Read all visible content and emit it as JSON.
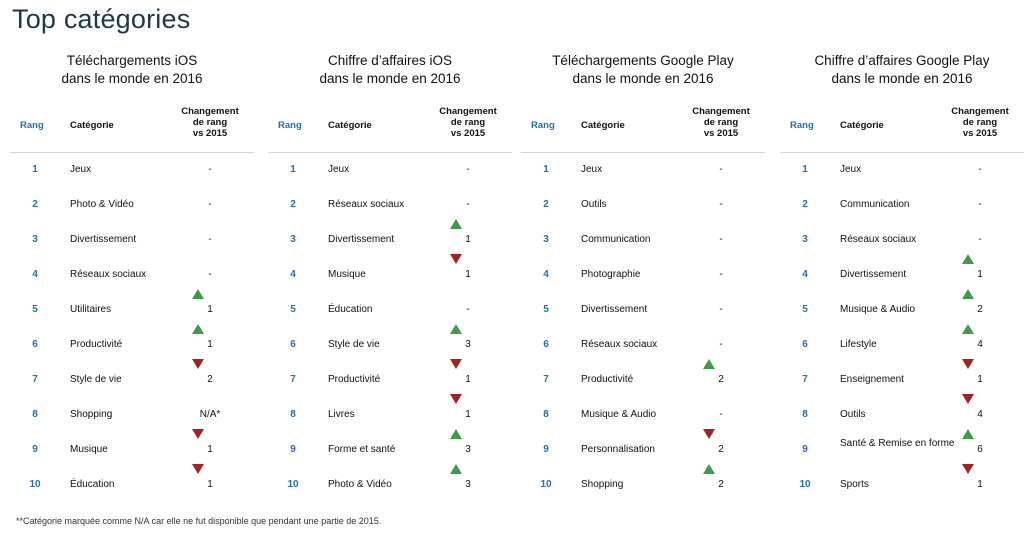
{
  "page_title": "Top catégories",
  "headers": {
    "rank": "Rang",
    "category": "Catégorie",
    "change_l1": "Changement",
    "change_l2": "de rang",
    "change_l3": "vs 2015"
  },
  "panels": [
    {
      "title_l1": "Téléchargements iOS",
      "title_l2": "dans le monde en 2016",
      "rows": [
        {
          "rank": "1",
          "cat": "Jeux",
          "change": "-",
          "trend": "none"
        },
        {
          "rank": "2",
          "cat": "Photo & Vidéo",
          "change": "-",
          "trend": "none"
        },
        {
          "rank": "3",
          "cat": "Divertissement",
          "change": "-",
          "trend": "none"
        },
        {
          "rank": "4",
          "cat": "Réseaux sociaux",
          "change": "-",
          "trend": "none"
        },
        {
          "rank": "5",
          "cat": "Utilitaires",
          "change": "1",
          "trend": "up"
        },
        {
          "rank": "6",
          "cat": "Productivité",
          "change": "1",
          "trend": "up"
        },
        {
          "rank": "7",
          "cat": "Style de vie",
          "change": "2",
          "trend": "down"
        },
        {
          "rank": "8",
          "cat": "Shopping",
          "change": "N/A*",
          "trend": "none"
        },
        {
          "rank": "9",
          "cat": "Musique",
          "change": "1",
          "trend": "down"
        },
        {
          "rank": "10",
          "cat": "Éducation",
          "change": "1",
          "trend": "down"
        }
      ]
    },
    {
      "title_l1": "Chiffre d’affaires iOS",
      "title_l2": "dans le monde en 2016",
      "rows": [
        {
          "rank": "1",
          "cat": "Jeux",
          "change": "-",
          "trend": "none"
        },
        {
          "rank": "2",
          "cat": "Réseaux sociaux",
          "change": "-",
          "trend": "none"
        },
        {
          "rank": "3",
          "cat": "Divertissement",
          "change": "1",
          "trend": "up"
        },
        {
          "rank": "4",
          "cat": "Musique",
          "change": "1",
          "trend": "down"
        },
        {
          "rank": "5",
          "cat": "Éducation",
          "change": "-",
          "trend": "none"
        },
        {
          "rank": "6",
          "cat": "Style de vie",
          "change": "3",
          "trend": "up"
        },
        {
          "rank": "7",
          "cat": "Productivité",
          "change": "1",
          "trend": "down"
        },
        {
          "rank": "8",
          "cat": "Livres",
          "change": "1",
          "trend": "down"
        },
        {
          "rank": "9",
          "cat": "Forme et santé",
          "change": "3",
          "trend": "up"
        },
        {
          "rank": "10",
          "cat": "Photo & Vidéo",
          "change": "3",
          "trend": "up"
        }
      ]
    },
    {
      "title_l1": "Téléchargements Google Play",
      "title_l2": "dans le monde en 2016",
      "rows": [
        {
          "rank": "1",
          "cat": "Jeux",
          "change": "-",
          "trend": "none"
        },
        {
          "rank": "2",
          "cat": "Outils",
          "change": "-",
          "trend": "none"
        },
        {
          "rank": "3",
          "cat": "Communication",
          "change": "-",
          "trend": "none"
        },
        {
          "rank": "4",
          "cat": "Photographie",
          "change": "-",
          "trend": "none"
        },
        {
          "rank": "5",
          "cat": "Divertissement",
          "change": "-",
          "trend": "none"
        },
        {
          "rank": "6",
          "cat": "Réseaux sociaux",
          "change": "-",
          "trend": "none"
        },
        {
          "rank": "7",
          "cat": "Productivité",
          "change": "2",
          "trend": "up"
        },
        {
          "rank": "8",
          "cat": "Musique & Audio",
          "change": "-",
          "trend": "none"
        },
        {
          "rank": "9",
          "cat": "Personnalisation",
          "change": "2",
          "trend": "down"
        },
        {
          "rank": "10",
          "cat": "Shopping",
          "change": "2",
          "trend": "up"
        }
      ]
    },
    {
      "title_l1": "Chiffre d’affaires Google Play",
      "title_l2": "dans le monde en 2016",
      "rows": [
        {
          "rank": "1",
          "cat": "Jeux",
          "change": "-",
          "trend": "none"
        },
        {
          "rank": "2",
          "cat": "Communication",
          "change": "-",
          "trend": "none"
        },
        {
          "rank": "3",
          "cat": "Réseaux sociaux",
          "change": "-",
          "trend": "none"
        },
        {
          "rank": "4",
          "cat": "Divertissement",
          "change": "1",
          "trend": "up"
        },
        {
          "rank": "5",
          "cat": "Musique & Audio",
          "change": "2",
          "trend": "up"
        },
        {
          "rank": "6",
          "cat": "Lifestyle",
          "change": "4",
          "trend": "up"
        },
        {
          "rank": "7",
          "cat": "Enseignement",
          "change": "1",
          "trend": "down"
        },
        {
          "rank": "8",
          "cat": "Outils",
          "change": "4",
          "trend": "down"
        },
        {
          "rank": "9",
          "cat": "Santé & Remise en forme",
          "change": "6",
          "trend": "up"
        },
        {
          "rank": "10",
          "cat": "Sports",
          "change": "1",
          "trend": "down"
        }
      ]
    }
  ],
  "footnote": "**Catégorie marquée comme N/A car elle ne fut disponible que pendant une partie de 2015.",
  "colors": {
    "accent": "#1f6fc0",
    "title": "#1f3552",
    "up": "#3f9b4a",
    "down": "#a32323"
  }
}
